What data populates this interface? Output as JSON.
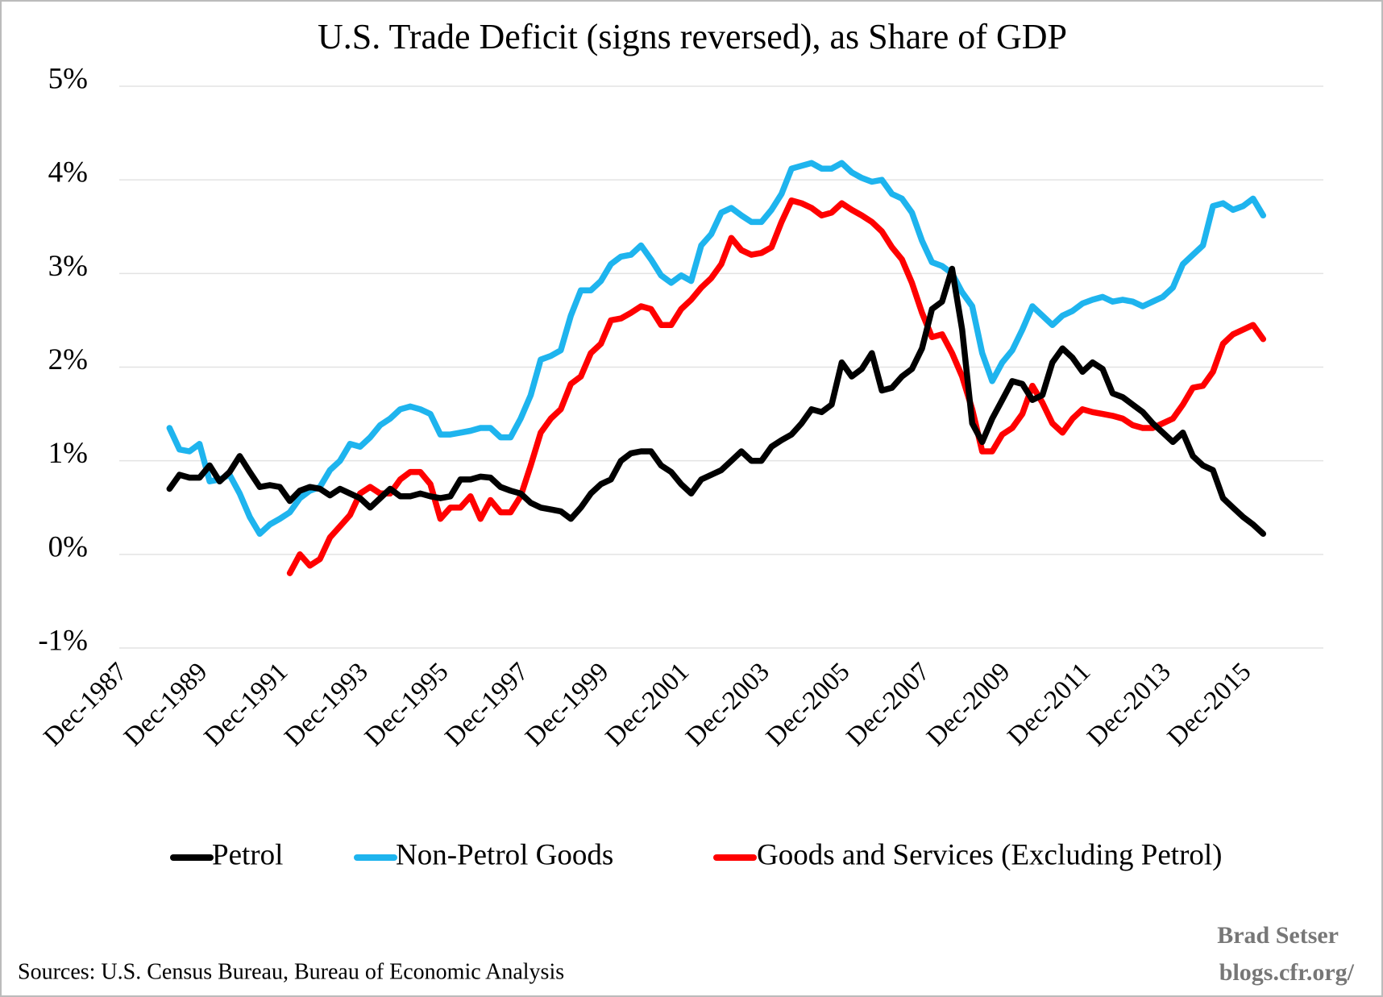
{
  "chart_data": {
    "type": "line",
    "title": "U.S. Trade Deficit (signs reversed), as Share of GDP",
    "sources": "Sources: U.S. Census Bureau, Bureau of Economic Analysis",
    "credit": [
      "Brad Setser",
      "blogs.cfr.org/"
    ],
    "grid": true,
    "legend": "bottom",
    "ylim": [
      -1,
      5
    ],
    "yticks": [
      {
        "value": -1,
        "label": "-1%"
      },
      {
        "value": 0,
        "label": "0%"
      },
      {
        "value": 1,
        "label": "1%"
      },
      {
        "value": 2,
        "label": "2%"
      },
      {
        "value": 3,
        "label": "3%"
      },
      {
        "value": 4,
        "label": "4%"
      },
      {
        "value": 5,
        "label": "5%"
      }
    ],
    "categories": [
      "Dec-1987",
      null,
      null,
      null,
      null,
      null,
      null,
      null,
      "Dec-1989",
      null,
      null,
      null,
      null,
      null,
      null,
      null,
      "Dec-1991",
      null,
      null,
      null,
      null,
      null,
      null,
      null,
      "Dec-1993",
      null,
      null,
      null,
      null,
      null,
      null,
      null,
      "Dec-1995",
      null,
      null,
      null,
      null,
      null,
      null,
      null,
      "Dec-1997",
      null,
      null,
      null,
      null,
      null,
      null,
      null,
      "Dec-1999",
      null,
      null,
      null,
      null,
      null,
      null,
      null,
      "Dec-2001",
      null,
      null,
      null,
      null,
      null,
      null,
      null,
      "Dec-2003",
      null,
      null,
      null,
      null,
      null,
      null,
      null,
      "Dec-2005",
      null,
      null,
      null,
      null,
      null,
      null,
      null,
      "Dec-2007",
      null,
      null,
      null,
      null,
      null,
      null,
      null,
      "Dec-2009",
      null,
      null,
      null,
      null,
      null,
      null,
      null,
      "Dec-2011",
      null,
      null,
      null,
      null,
      null,
      null,
      null,
      "Dec-2013",
      null,
      null,
      null,
      null,
      null,
      null,
      null,
      "Dec-2015",
      null,
      null,
      null,
      null,
      null,
      null,
      null
    ],
    "series": [
      {
        "name": "Petrol",
        "color": "#000000",
        "values": [
          null,
          null,
          null,
          null,
          null,
          0.7,
          0.85,
          0.82,
          0.82,
          0.95,
          0.78,
          0.88,
          1.05,
          0.88,
          0.72,
          0.74,
          0.72,
          0.57,
          0.68,
          0.72,
          0.7,
          0.63,
          0.7,
          0.65,
          0.6,
          0.5,
          0.6,
          0.7,
          0.62,
          0.62,
          0.65,
          0.62,
          0.6,
          0.62,
          0.8,
          0.8,
          0.83,
          0.82,
          0.72,
          0.68,
          0.65,
          0.55,
          0.5,
          0.48,
          0.46,
          0.38,
          0.5,
          0.65,
          0.75,
          0.8,
          1.0,
          1.08,
          1.1,
          1.1,
          0.95,
          0.88,
          0.75,
          0.65,
          0.8,
          0.85,
          0.9,
          1.0,
          1.1,
          1.0,
          1.0,
          1.15,
          1.22,
          1.28,
          1.4,
          1.55,
          1.52,
          1.6,
          2.05,
          1.9,
          1.98,
          2.15,
          1.75,
          1.78,
          1.9,
          1.98,
          2.2,
          2.62,
          2.7,
          3.05,
          2.4,
          1.4,
          1.2,
          1.45,
          1.65,
          1.85,
          1.82,
          1.65,
          1.7,
          2.05,
          2.2,
          2.1,
          1.95,
          2.05,
          1.98,
          1.72,
          1.68,
          1.6,
          1.52,
          1.4,
          1.3,
          1.2,
          1.3,
          1.05,
          0.95,
          0.9,
          0.6,
          0.5,
          0.4,
          0.32,
          0.22,
          null,
          null,
          null,
          null,
          null
        ]
      },
      {
        "name": "Non-Petrol Goods",
        "color": "#1eb4ee",
        "values": [
          null,
          null,
          null,
          null,
          null,
          1.35,
          1.12,
          1.1,
          1.18,
          0.78,
          0.8,
          0.85,
          0.65,
          0.4,
          0.22,
          0.32,
          0.38,
          0.45,
          0.6,
          0.68,
          0.72,
          0.9,
          1.0,
          1.18,
          1.15,
          1.25,
          1.38,
          1.45,
          1.55,
          1.58,
          1.55,
          1.5,
          1.28,
          1.28,
          1.3,
          1.32,
          1.35,
          1.35,
          1.25,
          1.25,
          1.45,
          1.7,
          2.08,
          2.12,
          2.18,
          2.55,
          2.82,
          2.82,
          2.92,
          3.1,
          3.18,
          3.2,
          3.3,
          3.15,
          2.98,
          2.9,
          2.98,
          2.92,
          3.3,
          3.42,
          3.65,
          3.7,
          3.62,
          3.55,
          3.55,
          3.68,
          3.85,
          4.12,
          4.15,
          4.18,
          4.12,
          4.12,
          4.18,
          4.08,
          4.02,
          3.98,
          4.0,
          3.85,
          3.8,
          3.65,
          3.35,
          3.12,
          3.08,
          3.0,
          2.8,
          2.65,
          2.15,
          1.85,
          2.05,
          2.18,
          2.4,
          2.65,
          2.55,
          2.45,
          2.55,
          2.6,
          2.68,
          2.72,
          2.75,
          2.7,
          2.72,
          2.7,
          2.65,
          2.7,
          2.75,
          2.85,
          3.1,
          3.2,
          3.3,
          3.72,
          3.75,
          3.68,
          3.72,
          3.8,
          3.62,
          null,
          null,
          null,
          null,
          null
        ]
      },
      {
        "name": "Goods and Services (Excluding Petrol)",
        "color": "#ff0000",
        "values": [
          null,
          null,
          null,
          null,
          null,
          null,
          null,
          null,
          null,
          null,
          null,
          null,
          null,
          null,
          null,
          null,
          null,
          -0.2,
          0.0,
          -0.12,
          -0.05,
          0.18,
          0.3,
          0.42,
          0.65,
          0.72,
          0.65,
          0.65,
          0.8,
          0.88,
          0.88,
          0.75,
          0.38,
          0.5,
          0.5,
          0.62,
          0.38,
          0.58,
          0.45,
          0.45,
          0.62,
          0.95,
          1.3,
          1.45,
          1.55,
          1.82,
          1.9,
          2.15,
          2.25,
          2.5,
          2.52,
          2.58,
          2.65,
          2.62,
          2.45,
          2.45,
          2.62,
          2.72,
          2.85,
          2.95,
          3.1,
          3.38,
          3.25,
          3.2,
          3.22,
          3.28,
          3.55,
          3.78,
          3.75,
          3.7,
          3.62,
          3.65,
          3.75,
          3.68,
          3.62,
          3.55,
          3.45,
          3.28,
          3.15,
          2.9,
          2.58,
          2.32,
          2.35,
          2.15,
          1.9,
          1.55,
          1.1,
          1.1,
          1.28,
          1.35,
          1.5,
          1.8,
          1.62,
          1.4,
          1.3,
          1.45,
          1.55,
          1.52,
          1.5,
          1.48,
          1.45,
          1.38,
          1.35,
          1.35,
          1.4,
          1.45,
          1.6,
          1.78,
          1.8,
          1.95,
          2.25,
          2.35,
          2.4,
          2.45,
          2.3,
          null,
          null,
          null,
          null,
          null
        ]
      }
    ]
  }
}
